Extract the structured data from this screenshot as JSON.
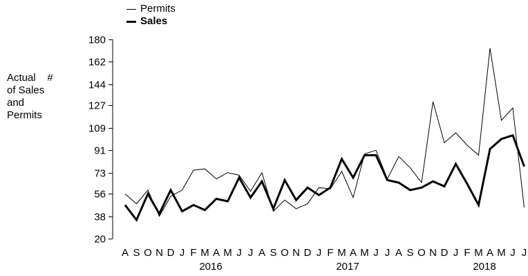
{
  "chart_data": {
    "type": "line",
    "ylabel": "Actual    #\nof Sales\nand\nPermits",
    "xlabel": "",
    "ylim": [
      20,
      180
    ],
    "yticks": [
      "20",
      "38",
      "56",
      "73",
      "91",
      "109",
      "127",
      "144",
      "162",
      "180"
    ],
    "x_months": [
      "A",
      "S",
      "O",
      "N",
      "D",
      "J",
      "F",
      "M",
      "A",
      "M",
      "J",
      "J",
      "A",
      "S",
      "O",
      "N",
      "D",
      "J",
      "F",
      "M",
      "A",
      "M",
      "J",
      "J",
      "A",
      "S",
      "O",
      "N",
      "D",
      "J",
      "F",
      "M",
      "A",
      "M",
      "J",
      "J"
    ],
    "x_years": [
      {
        "label": "2016",
        "month_index": 8
      },
      {
        "label": "2017",
        "month_index": 20
      },
      {
        "label": "2018",
        "month_index": 32
      }
    ],
    "grid": false,
    "legend_position": "top-left",
    "series": [
      {
        "name": "Permits",
        "style": "thin",
        "values": [
          56,
          48,
          59,
          38,
          54,
          59,
          75,
          76,
          68,
          73,
          71,
          58,
          73,
          42,
          51,
          44,
          48,
          61,
          60,
          74,
          53,
          88,
          91,
          68,
          86,
          77,
          65,
          130,
          97,
          105,
          95,
          87,
          173,
          115,
          125,
          45
        ]
      },
      {
        "name": "Sales",
        "style": "bold",
        "values": [
          47,
          35,
          56,
          40,
          59,
          42,
          47,
          43,
          52,
          50,
          69,
          53,
          66,
          44,
          67,
          51,
          61,
          55,
          61,
          84,
          69,
          87,
          87,
          67,
          65,
          59,
          61,
          66,
          62,
          80,
          64,
          47,
          92,
          100,
          103,
          78
        ]
      }
    ]
  }
}
